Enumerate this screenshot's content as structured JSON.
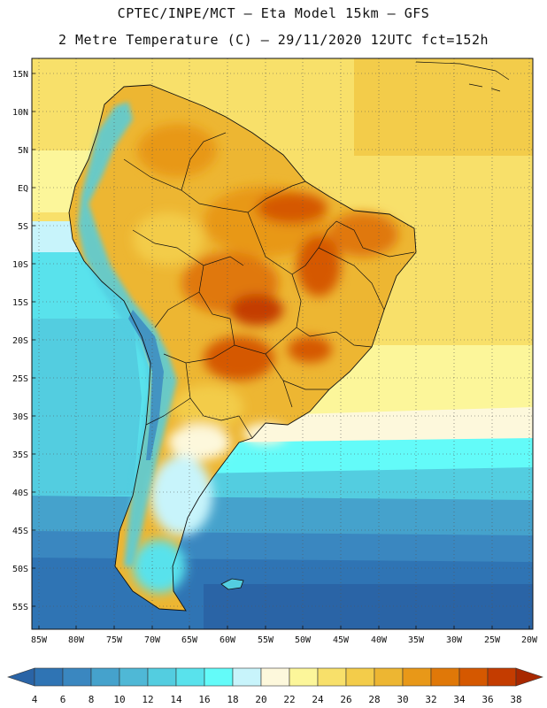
{
  "header": {
    "line1": "CPTEC/INPE/MCT –  Eta Model 15km – GFS",
    "line2": "2 Metre Temperature (C) – 29/11/2020 12UTC fct=152h"
  },
  "axes": {
    "lat_labels": [
      "15N",
      "10N",
      "5N",
      "EQ",
      "5S",
      "10S",
      "15S",
      "20S",
      "25S",
      "30S",
      "35S",
      "40S",
      "45S",
      "50S",
      "55S"
    ],
    "lon_labels": [
      "85W",
      "80W",
      "75W",
      "70W",
      "65W",
      "60W",
      "55W",
      "50W",
      "45W",
      "40W",
      "35W",
      "30W",
      "25W",
      "20W"
    ]
  },
  "colorbar": {
    "labels": [
      "4",
      "6",
      "8",
      "10",
      "12",
      "14",
      "16",
      "18",
      "20",
      "22",
      "24",
      "26",
      "28",
      "30",
      "32",
      "34",
      "36",
      "38"
    ],
    "colors": [
      "#2a64a6",
      "#2f74b4",
      "#3a87c0",
      "#45a2cc",
      "#4fb8d6",
      "#53cde0",
      "#59e2ec",
      "#63fbf9",
      "#c8f4fb",
      "#fdf8dc",
      "#fcf69a",
      "#f8e06a",
      "#f3cc4a",
      "#edb632",
      "#e89818",
      "#e07808",
      "#d55800",
      "#c43c00",
      "#a82800"
    ]
  },
  "chart_data": {
    "type": "heatmap",
    "title": "CPTEC/INPE/MCT – Eta Model 15km – GFS",
    "subtitle": "2 Metre Temperature (C) – 29/11/2020 12UTC fct=152h",
    "variable": "2 Metre Temperature",
    "units": "C",
    "xlim": [
      -85,
      -20
    ],
    "ylim": [
      -57,
      17
    ],
    "color_levels": [
      4,
      6,
      8,
      10,
      12,
      14,
      16,
      18,
      20,
      22,
      24,
      26,
      28,
      30,
      32,
      34,
      36,
      38
    ]
  }
}
